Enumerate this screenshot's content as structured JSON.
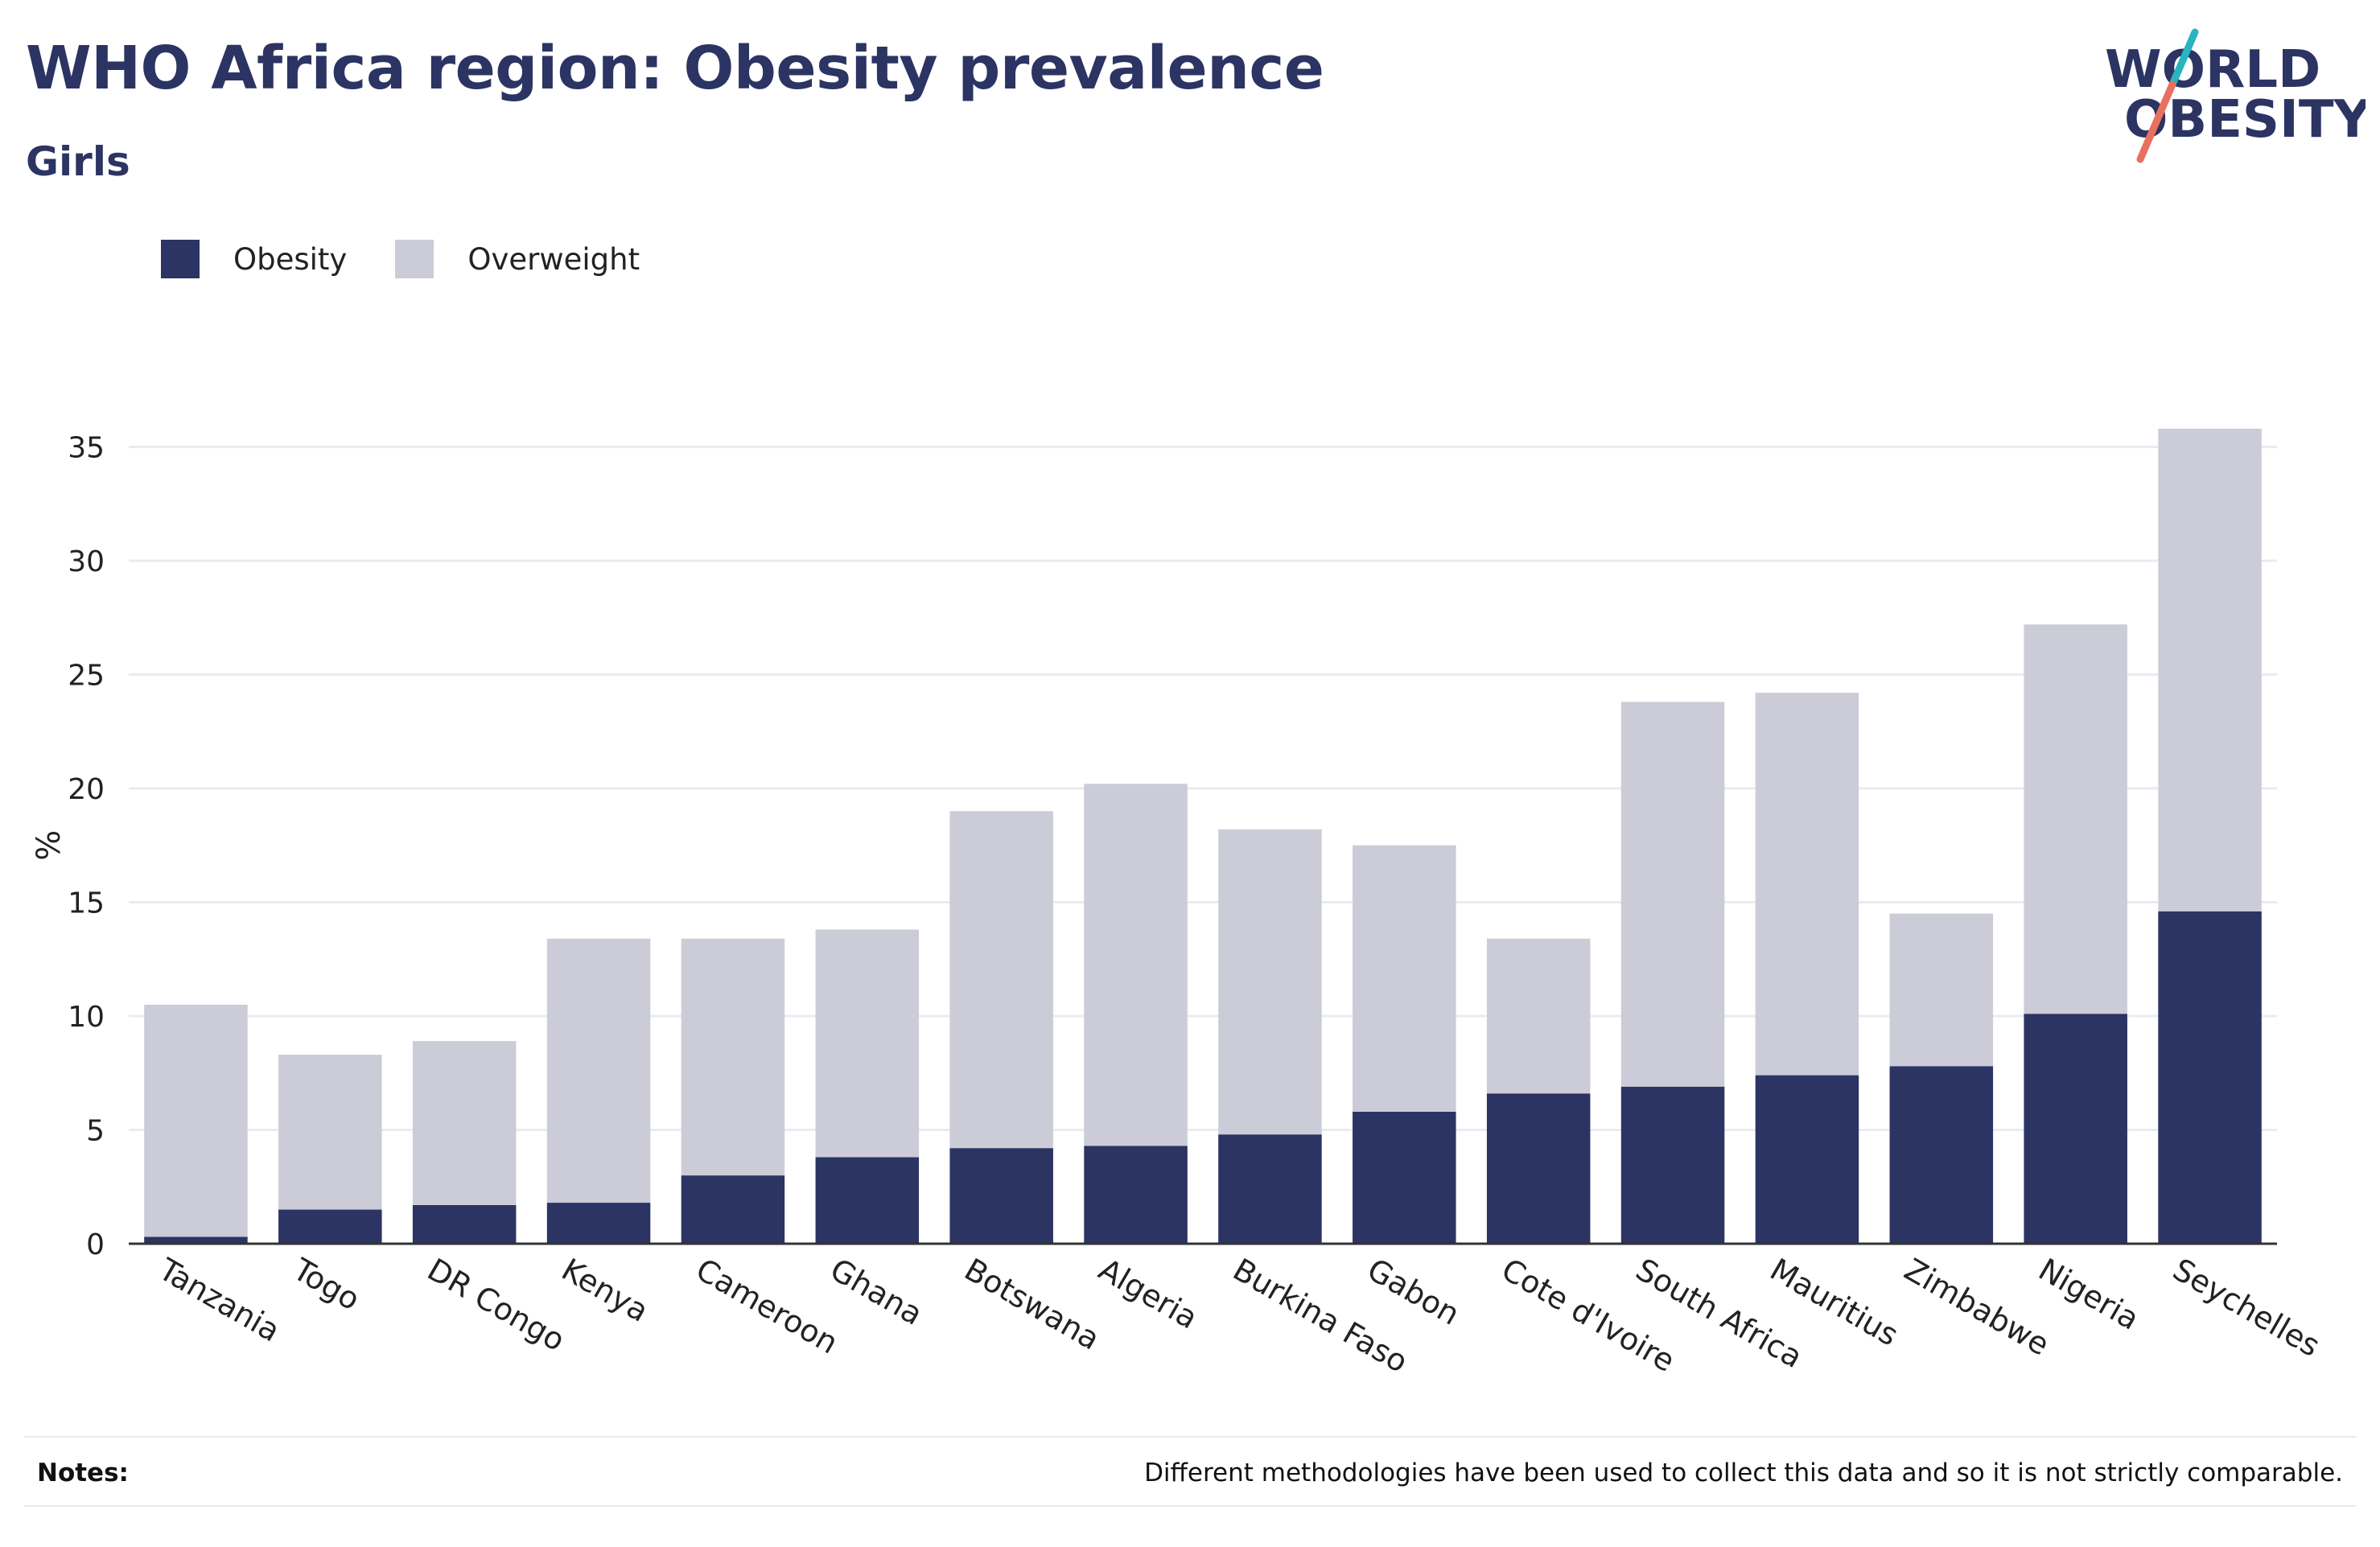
{
  "header": {
    "title": "WHO Africa region: Obesity prevalence",
    "subtitle": "Girls"
  },
  "logo": {
    "line1": "WORLD",
    "line2": "OBESITY",
    "colors": {
      "text": "#2b3462",
      "slash_top": "#2ab3c0",
      "slash_bottom": "#e8705f"
    }
  },
  "legend": [
    {
      "label": "Obesity",
      "color": "#2b3462"
    },
    {
      "label": "Overweight",
      "color": "#cbccd8"
    }
  ],
  "chart_data": {
    "type": "bar",
    "stacked": true,
    "categories": [
      "Tanzania",
      "Togo",
      "DR Congo",
      "Kenya",
      "Cameroon",
      "Ghana",
      "Botswana",
      "Algeria",
      "Burkina Faso",
      "Gabon",
      "Cote d'Ivoire",
      "South Africa",
      "Mauritius",
      "Zimbabwe",
      "Nigeria",
      "Seychelles"
    ],
    "series": [
      {
        "name": "Obesity",
        "color": "#2b3462",
        "values": [
          0.3,
          1.5,
          1.7,
          1.8,
          3.0,
          3.8,
          4.2,
          4.3,
          4.8,
          5.8,
          6.6,
          6.9,
          7.4,
          7.8,
          10.1,
          14.6
        ]
      },
      {
        "name": "Overweight",
        "color": "#cbccd8",
        "values": [
          10.2,
          6.8,
          7.2,
          11.6,
          10.4,
          10.0,
          14.8,
          15.9,
          13.4,
          11.7,
          6.8,
          16.9,
          16.8,
          6.7,
          17.1,
          21.2
        ]
      }
    ],
    "ylabel": "%",
    "xlabel": "",
    "ylim": [
      0,
      37
    ],
    "yticks": [
      0,
      5,
      10,
      15,
      20,
      25,
      30,
      35
    ],
    "grid": true,
    "legend_position": "top-left"
  },
  "notes": {
    "label": "Notes:",
    "text": "Different methodologies have been used to collect this data and so it is not strictly comparable."
  }
}
